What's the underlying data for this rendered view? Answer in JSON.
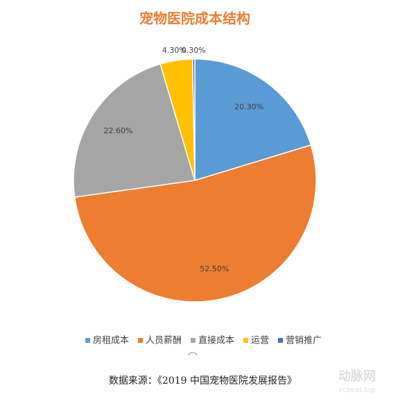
{
  "chart_data": {
    "type": "pie",
    "title": "宠物医院成本结构",
    "categories": [
      "房租成本",
      "人员薪酬",
      "直接成本",
      "运营",
      "营销推广"
    ],
    "values": [
      20.3,
      52.5,
      22.6,
      4.3,
      0.3
    ],
    "value_labels": [
      "20.30%",
      "52.50%",
      "22.60%",
      "4.30%",
      "0.30%"
    ],
    "colors": [
      "#5b9bd5",
      "#ed7d31",
      "#a5a5a5",
      "#ffc000",
      "#4472c4"
    ],
    "legend": "bottom",
    "source": "数据来源：《2019 中国宠物医院发展报告》",
    "watermark": [
      "动脉网",
      "vcbeat.top"
    ]
  }
}
